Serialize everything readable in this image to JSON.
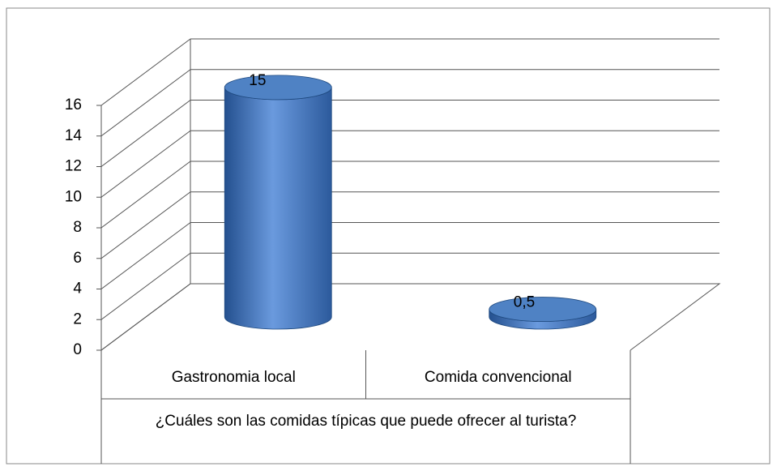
{
  "chart_data": {
    "type": "bar3d",
    "categories": [
      "Gastronomia local",
      "Comida convencional"
    ],
    "values": [
      15,
      0.5
    ],
    "value_labels": [
      "15",
      "0,5"
    ],
    "color": "#4a7ebb",
    "x_label": "¿Cuáles son las comidas típicas que puede ofrecer al turista?",
    "ylim": [
      0,
      16
    ],
    "yticks": [
      0,
      2,
      4,
      6,
      8,
      10,
      12,
      14,
      16
    ],
    "grid": true
  }
}
